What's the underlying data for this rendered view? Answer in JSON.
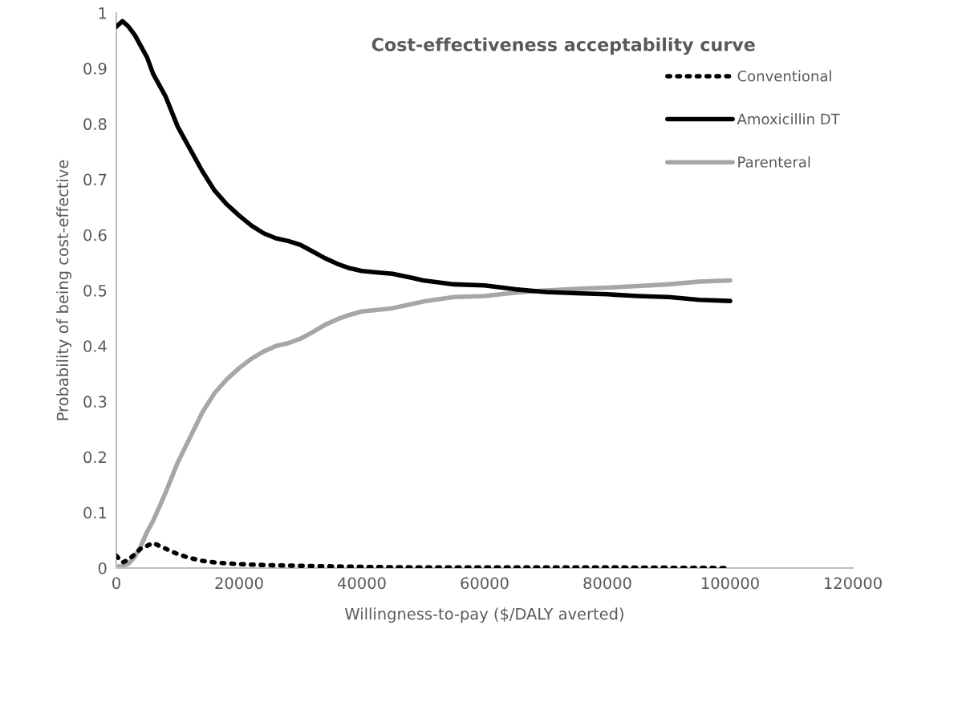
{
  "chart_data": {
    "type": "line",
    "title": "Cost-effectiveness acceptability curve",
    "xlabel": "Willingness-to-pay ($/DALY averted)",
    "ylabel": "Probability of being cost-effective",
    "xlim": [
      0,
      120000
    ],
    "xticks": [
      0,
      20000,
      40000,
      60000,
      80000,
      100000,
      120000
    ],
    "ylim": [
      0,
      1
    ],
    "yticks": [
      0,
      0.1,
      0.2,
      0.3,
      0.4,
      0.5,
      0.6,
      0.7,
      0.8,
      0.9,
      1
    ],
    "grid": false,
    "legend": "top right",
    "marker": "none",
    "series": [
      {
        "name": "Conventional",
        "color": "#000000",
        "line_style": "dotted",
        "x": [
          0,
          1000,
          2000,
          3000,
          4000,
          6000,
          8000,
          10000,
          12000,
          14000,
          16000,
          20000,
          25000,
          30000,
          40000,
          50000,
          60000,
          80000,
          100000
        ],
        "values": [
          0.022,
          0.01,
          0.015,
          0.025,
          0.035,
          0.045,
          0.035,
          0.025,
          0.018,
          0.013,
          0.01,
          0.007,
          0.005,
          0.004,
          0.002,
          0.001,
          0.001,
          0.001,
          0
        ]
      },
      {
        "name": "Amoxicillin DT",
        "color": "#000000",
        "line_style": "solid",
        "x": [
          0,
          1000,
          2000,
          3000,
          5000,
          6000,
          8000,
          10000,
          12000,
          14000,
          16000,
          18000,
          20000,
          22000,
          24000,
          26000,
          28000,
          30000,
          32000,
          34000,
          36000,
          38000,
          40000,
          42000,
          45000,
          48000,
          50000,
          55000,
          60000,
          65000,
          70000,
          75000,
          80000,
          85000,
          90000,
          95000,
          100000
        ],
        "values": [
          0.975,
          0.985,
          0.975,
          0.96,
          0.92,
          0.89,
          0.85,
          0.795,
          0.755,
          0.715,
          0.68,
          0.655,
          0.635,
          0.617,
          0.603,
          0.594,
          0.589,
          0.582,
          0.57,
          0.558,
          0.548,
          0.54,
          0.535,
          0.533,
          0.53,
          0.523,
          0.518,
          0.511,
          0.509,
          0.502,
          0.497,
          0.495,
          0.493,
          0.49,
          0.488,
          0.483,
          0.481
        ]
      },
      {
        "name": "Parenteral",
        "color": "#a6a6a6",
        "line_style": "solid",
        "x": [
          0,
          1000,
          2000,
          3000,
          4000,
          5000,
          6000,
          8000,
          10000,
          12000,
          14000,
          16000,
          18000,
          20000,
          22000,
          24000,
          26000,
          28000,
          30000,
          32000,
          34000,
          36000,
          38000,
          40000,
          45000,
          50000,
          55000,
          60000,
          65000,
          70000,
          75000,
          80000,
          85000,
          90000,
          95000,
          100000
        ],
        "values": [
          0.003,
          0.003,
          0.008,
          0.02,
          0.04,
          0.065,
          0.085,
          0.135,
          0.19,
          0.235,
          0.28,
          0.315,
          0.34,
          0.36,
          0.377,
          0.39,
          0.4,
          0.405,
          0.413,
          0.425,
          0.438,
          0.448,
          0.456,
          0.462,
          0.468,
          0.48,
          0.488,
          0.49,
          0.496,
          0.5,
          0.503,
          0.505,
          0.508,
          0.511,
          0.516,
          0.518
        ]
      }
    ]
  }
}
